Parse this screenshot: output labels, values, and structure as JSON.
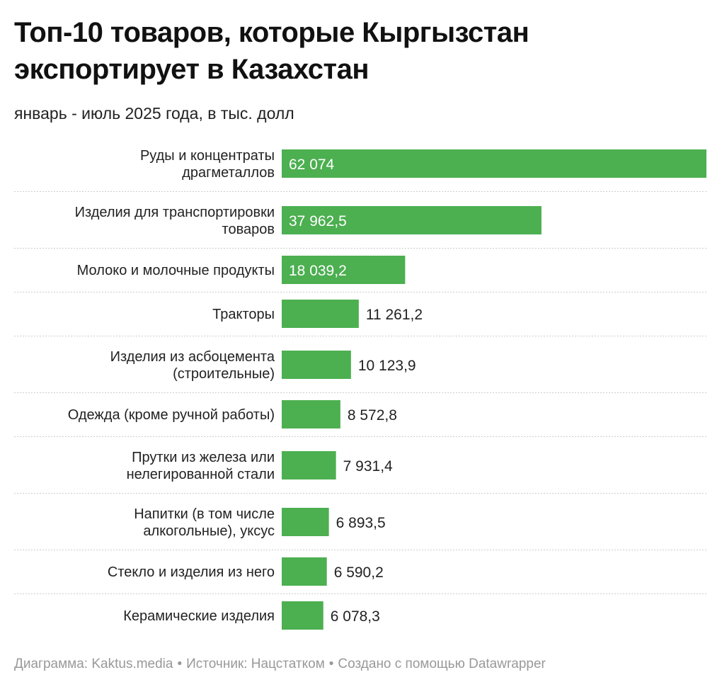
{
  "header": {
    "title": "Топ-10 товаров, которые Кыргызстан экспортирует в Казахстан",
    "subtitle": "январь - июль 2025 года, в тыс. долл"
  },
  "footer": {
    "chart_credit": "Диаграмма: Kaktus.media",
    "source": "Источник: Нацстатком",
    "made_with": "Создано с помощью Datawrapper",
    "separator": "•"
  },
  "colors": {
    "bar": "#4caf50",
    "label_inside": "#ffffff",
    "label_outside": "#222222",
    "divider": "#cccccc"
  },
  "chart_data": {
    "type": "bar",
    "orientation": "horizontal",
    "title": "Топ-10 товаров, которые Кыргызстан экспортирует в Казахстан",
    "subtitle": "январь - июль 2025 года, в тыс. долл",
    "xlabel": "",
    "ylabel": "",
    "xlim": [
      0,
      62074
    ],
    "categories": [
      [
        "Руды и концентраты",
        "драгметаллов"
      ],
      [
        "Изделия для транспортировки",
        "товаров"
      ],
      [
        "Молоко и молочные продукты"
      ],
      [
        "Тракторы"
      ],
      [
        "Изделия из асбоцемента",
        "(строительные)"
      ],
      [
        "Одежда (кроме ручной работы)"
      ],
      [
        "Прутки из железа или",
        "нелегированной стали"
      ],
      [
        "Напитки (в том числе",
        "алкогольные), уксус"
      ],
      [
        "Стекло и изделия из него"
      ],
      [
        "Керамические изделия"
      ]
    ],
    "values": [
      62074,
      37962.5,
      18039.2,
      11261.2,
      10123.9,
      8572.8,
      7931.4,
      6893.5,
      6590.2,
      6078.3
    ],
    "value_labels": [
      "62 074",
      "37 962,5",
      "18 039,2",
      "11 261,2",
      "10 123,9",
      "8 572,8",
      "7 931,4",
      "6 893,5",
      "6 590,2",
      "6 078,3"
    ],
    "label_inside": [
      true,
      true,
      true,
      false,
      false,
      false,
      false,
      false,
      false,
      false
    ]
  }
}
